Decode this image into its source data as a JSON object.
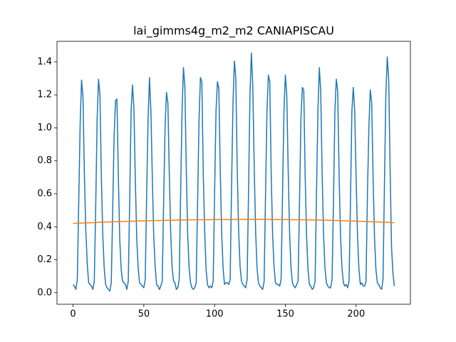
{
  "chart_data": {
    "type": "line",
    "title": "lai_gimms4g_m2_m2 CANIAPISCAU",
    "x": [
      0,
      1,
      2,
      3,
      4,
      5,
      6,
      7,
      8,
      9,
      10,
      11,
      12,
      13,
      14,
      15,
      16,
      17,
      18,
      19,
      20,
      21,
      22,
      23,
      24,
      25,
      26,
      27,
      28,
      29,
      30,
      31,
      32,
      33,
      34,
      35,
      36,
      37,
      38,
      39,
      40,
      41,
      42,
      43,
      44,
      45,
      46,
      47,
      48,
      49,
      50,
      51,
      52,
      53,
      54,
      55,
      56,
      57,
      58,
      59,
      60,
      61,
      62,
      63,
      64,
      65,
      66,
      67,
      68,
      69,
      70,
      71,
      72,
      73,
      74,
      75,
      76,
      77,
      78,
      79,
      80,
      81,
      82,
      83,
      84,
      85,
      86,
      87,
      88,
      89,
      90,
      91,
      92,
      93,
      94,
      95,
      96,
      97,
      98,
      99,
      100,
      101,
      102,
      103,
      104,
      105,
      106,
      107,
      108,
      109,
      110,
      111,
      112,
      113,
      114,
      115,
      116,
      117,
      118,
      119,
      120,
      121,
      122,
      123,
      124,
      125,
      126,
      127,
      128,
      129,
      130,
      131,
      132,
      133,
      134,
      135,
      136,
      137,
      138,
      139,
      140,
      141,
      142,
      143,
      144,
      145,
      146,
      147,
      148,
      149,
      150,
      151,
      152,
      153,
      154,
      155,
      156,
      157,
      158,
      159,
      160,
      161,
      162,
      163,
      164,
      165,
      166,
      167,
      168,
      169,
      170,
      171,
      172,
      173,
      174,
      175,
      176,
      177,
      178,
      179,
      180,
      181,
      182,
      183,
      184,
      185,
      186,
      187,
      188,
      189,
      190,
      191,
      192,
      193,
      194,
      195,
      196,
      197,
      198,
      199,
      200,
      201,
      202,
      203,
      204,
      205,
      206,
      207,
      208,
      209,
      210,
      211,
      212,
      213,
      214,
      215,
      216,
      217,
      218,
      219,
      220,
      221,
      222,
      223,
      224,
      225,
      226,
      227
    ],
    "series": [
      {
        "color": "#1f77b4",
        "values": [
          0.05,
          0.04,
          0.02,
          0.08,
          0.55,
          1.02,
          1.29,
          1.19,
          0.72,
          0.38,
          0.18,
          0.06,
          0.05,
          0.04,
          0.02,
          0.07,
          0.52,
          1.05,
          1.295,
          1.2,
          0.7,
          0.35,
          0.15,
          0.05,
          0.03,
          0.02,
          0.01,
          0.06,
          0.5,
          0.95,
          1.165,
          1.175,
          0.7,
          0.32,
          0.14,
          0.07,
          0.06,
          0.05,
          0.02,
          0.07,
          0.55,
          1.1,
          1.26,
          1.12,
          0.68,
          0.33,
          0.15,
          0.06,
          0.05,
          0.04,
          0.03,
          0.08,
          0.6,
          1.05,
          1.305,
          1.1,
          0.7,
          0.34,
          0.16,
          0.05,
          0.04,
          0.02,
          0.04,
          0.07,
          0.55,
          1.0,
          1.215,
          1.15,
          0.72,
          0.36,
          0.15,
          0.07,
          0.06,
          0.02,
          0.03,
          0.08,
          0.6,
          1.1,
          1.365,
          1.25,
          0.75,
          0.35,
          0.15,
          0.06,
          0.03,
          0.02,
          0.03,
          0.06,
          0.55,
          1.05,
          1.305,
          1.28,
          0.72,
          0.37,
          0.14,
          0.05,
          0.03,
          0.04,
          0.03,
          0.07,
          0.6,
          1.1,
          1.28,
          1.24,
          0.74,
          0.36,
          0.15,
          0.05,
          0.06,
          0.06,
          0.05,
          0.08,
          0.65,
          1.15,
          1.405,
          1.3,
          0.75,
          0.37,
          0.16,
          0.07,
          0.05,
          0.04,
          0.03,
          0.08,
          0.62,
          1.2,
          1.455,
          1.25,
          0.76,
          0.37,
          0.15,
          0.06,
          0.04,
          0.03,
          0.02,
          0.07,
          0.6,
          1.1,
          1.32,
          1.28,
          0.72,
          0.35,
          0.16,
          0.06,
          0.05,
          0.05,
          0.04,
          0.08,
          0.6,
          1.1,
          1.32,
          1.2,
          0.74,
          0.36,
          0.15,
          0.06,
          0.04,
          0.03,
          0.05,
          0.07,
          0.55,
          1.05,
          1.245,
          1.23,
          0.71,
          0.34,
          0.14,
          0.05,
          0.04,
          0.02,
          0.03,
          0.07,
          0.6,
          1.1,
          1.365,
          1.22,
          0.72,
          0.35,
          0.15,
          0.06,
          0.04,
          0.03,
          0.03,
          0.08,
          0.55,
          1.1,
          1.295,
          1.22,
          0.7,
          0.34,
          0.15,
          0.06,
          0.04,
          0.05,
          0.03,
          0.07,
          0.55,
          1.1,
          1.245,
          1.1,
          0.7,
          0.34,
          0.14,
          0.05,
          0.06,
          0.04,
          0.04,
          0.07,
          0.6,
          1.0,
          1.23,
          1.15,
          0.7,
          0.33,
          0.14,
          0.06,
          0.05,
          0.03,
          0.02,
          0.08,
          0.65,
          1.2,
          1.43,
          1.3,
          0.76,
          0.28,
          0.12,
          0.04
        ]
      },
      {
        "color": "#ff7f0e",
        "values": [
          0.42,
          0.42,
          0.421,
          0.421,
          0.422,
          0.422,
          0.422,
          0.423,
          0.423,
          0.423,
          0.424,
          0.424,
          0.424,
          0.425,
          0.425,
          0.425,
          0.426,
          0.426,
          0.427,
          0.427,
          0.427,
          0.428,
          0.428,
          0.428,
          0.429,
          0.429,
          0.429,
          0.43,
          0.43,
          0.43,
          0.431,
          0.431,
          0.431,
          0.431,
          0.432,
          0.432,
          0.432,
          0.432,
          0.433,
          0.433,
          0.433,
          0.434,
          0.434,
          0.434,
          0.434,
          0.435,
          0.435,
          0.435,
          0.435,
          0.436,
          0.436,
          0.436,
          0.436,
          0.437,
          0.437,
          0.437,
          0.437,
          0.437,
          0.438,
          0.438,
          0.438,
          0.438,
          0.438,
          0.439,
          0.439,
          0.439,
          0.439,
          0.439,
          0.439,
          0.44,
          0.44,
          0.44,
          0.44,
          0.44,
          0.44,
          0.441,
          0.441,
          0.441,
          0.441,
          0.441,
          0.442,
          0.442,
          0.442,
          0.442,
          0.442,
          0.442,
          0.442,
          0.442,
          0.443,
          0.443,
          0.443,
          0.443,
          0.443,
          0.443,
          0.443,
          0.443,
          0.443,
          0.443,
          0.444,
          0.444,
          0.444,
          0.444,
          0.444,
          0.444,
          0.444,
          0.444,
          0.444,
          0.444,
          0.444,
          0.444,
          0.444,
          0.444,
          0.444,
          0.444,
          0.445,
          0.445,
          0.445,
          0.445,
          0.445,
          0.445,
          0.445,
          0.445,
          0.445,
          0.445,
          0.445,
          0.445,
          0.445,
          0.445,
          0.445,
          0.445,
          0.445,
          0.445,
          0.445,
          0.445,
          0.445,
          0.445,
          0.445,
          0.445,
          0.445,
          0.445,
          0.444,
          0.444,
          0.444,
          0.444,
          0.444,
          0.444,
          0.444,
          0.444,
          0.444,
          0.444,
          0.444,
          0.444,
          0.443,
          0.443,
          0.443,
          0.443,
          0.443,
          0.443,
          0.443,
          0.443,
          0.443,
          0.442,
          0.442,
          0.442,
          0.442,
          0.442,
          0.442,
          0.442,
          0.442,
          0.441,
          0.441,
          0.441,
          0.441,
          0.441,
          0.44,
          0.44,
          0.44,
          0.44,
          0.44,
          0.44,
          0.439,
          0.439,
          0.439,
          0.439,
          0.438,
          0.438,
          0.438,
          0.438,
          0.437,
          0.437,
          0.437,
          0.437,
          0.436,
          0.436,
          0.436,
          0.435,
          0.435,
          0.435,
          0.435,
          0.434,
          0.434,
          0.434,
          0.433,
          0.433,
          0.433,
          0.433,
          0.432,
          0.432,
          0.432,
          0.431,
          0.431,
          0.431,
          0.43,
          0.43,
          0.43,
          0.429,
          0.429,
          0.429,
          0.428,
          0.428,
          0.428,
          0.427,
          0.427,
          0.427,
          0.426,
          0.426,
          0.425,
          0.425
        ]
      }
    ],
    "xlim": [
      -11.35,
      238.35
    ],
    "xticks": [
      0,
      50,
      100,
      150,
      200
    ],
    "ylim": [
      -0.07,
      1.525
    ],
    "yticks": [
      {
        "value": 0,
        "label": "0.0"
      },
      {
        "value": 0.2,
        "label": "0.2"
      },
      {
        "value": 0.4,
        "label": "0.4"
      },
      {
        "value": 0.6,
        "label": "0.6"
      },
      {
        "value": 0.8,
        "label": "0.8"
      },
      {
        "value": 1,
        "label": "1.0"
      },
      {
        "value": 1.2,
        "label": "1.2"
      },
      {
        "value": 1.4,
        "label": "1.4"
      }
    ]
  }
}
